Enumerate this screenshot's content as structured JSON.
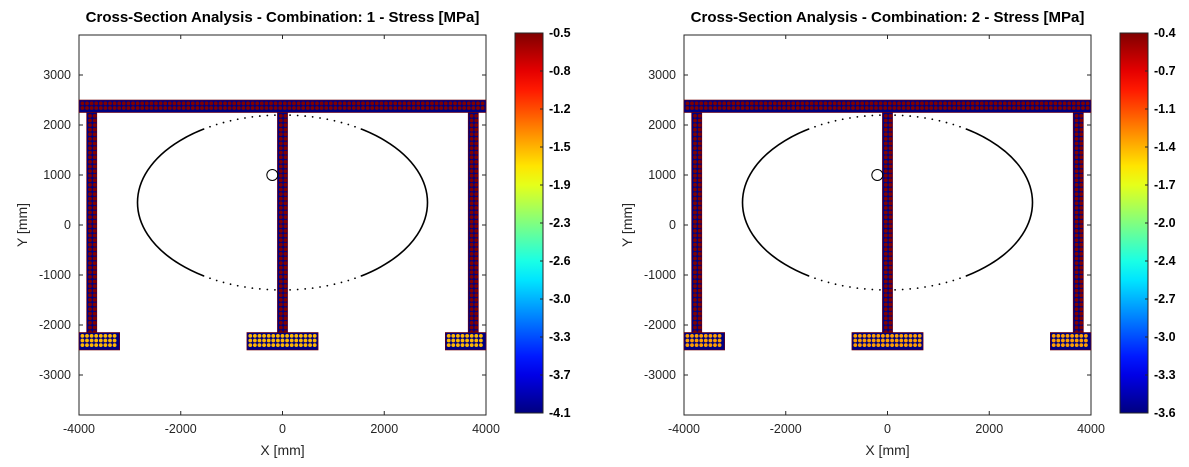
{
  "chart_data": [
    {
      "type": "scatter",
      "title": "Cross-Section Analysis - Combination: 1 - Stress [MPa]",
      "xlabel": "X [mm]",
      "ylabel": "Y [mm]",
      "xlim": [
        -4000,
        4000
      ],
      "ylim": [
        -3800,
        3800
      ],
      "xticks": [
        -4000,
        -2000,
        0,
        2000,
        4000
      ],
      "xtick_labels": [
        "-4000",
        "-2000",
        "0",
        "2000",
        "4000"
      ],
      "yticks": [
        3000,
        2000,
        1000,
        0,
        -1000,
        -2000,
        -3000
      ],
      "ytick_labels": [
        "3000",
        "2000",
        "1000",
        "0",
        "-1000",
        "-2000",
        "-3000"
      ],
      "grid": false,
      "colormap": "jet",
      "colorbar": {
        "range": [
          -4.1,
          -0.5
        ],
        "tick_labels": [
          "-0.5",
          "-0.8",
          "-1.2",
          "-1.5",
          "-1.9",
          "-2.3",
          "-2.6",
          "-3.0",
          "-3.3",
          "-3.7",
          "-4.1"
        ]
      },
      "section": {
        "top_flange": {
          "x": [
            -4000,
            4000
          ],
          "y": [
            2250,
            2500
          ]
        },
        "webs": [
          {
            "x": [
              -3850,
              -3650
            ],
            "y": [
              -2250,
              2250
            ]
          },
          {
            "x": [
              -100,
              100
            ],
            "y": [
              -2250,
              2250
            ]
          },
          {
            "x": [
              3650,
              3850
            ],
            "y": [
              -2250,
              2250
            ]
          }
        ],
        "bottom_flanges": [
          {
            "x": [
              -4000,
              -3200
            ],
            "y": [
              -2500,
              -2150
            ]
          },
          {
            "x": [
              -700,
              700
            ],
            "y": [
              -2500,
              -2150
            ]
          },
          {
            "x": [
              3200,
              4000
            ],
            "y": [
              -2500,
              -2150
            ]
          }
        ],
        "edge_stress": -0.5,
        "interior_stress": -4.1,
        "bottom_stress": -3.0
      },
      "ellipse": {
        "center": [
          0,
          450
        ],
        "radii": [
          2850,
          1750
        ]
      },
      "marker_circle": {
        "center": [
          -200,
          1000
        ]
      }
    },
    {
      "type": "scatter",
      "title": "Cross-Section Analysis - Combination: 2 - Stress [MPa]",
      "xlabel": "X [mm]",
      "ylabel": "Y [mm]",
      "xlim": [
        -4000,
        4000
      ],
      "ylim": [
        -3800,
        3800
      ],
      "xticks": [
        -4000,
        -2000,
        0,
        2000,
        4000
      ],
      "xtick_labels": [
        "-4000",
        "-2000",
        "0",
        "2000",
        "4000"
      ],
      "yticks": [
        3000,
        2000,
        1000,
        0,
        -1000,
        -2000,
        -3000
      ],
      "ytick_labels": [
        "3000",
        "2000",
        "1000",
        "0",
        "-1000",
        "-2000",
        "-3000"
      ],
      "grid": false,
      "colormap": "jet",
      "colorbar": {
        "range": [
          -3.6,
          -0.4
        ],
        "tick_labels": [
          "-0.4",
          "-0.7",
          "-1.1",
          "-1.4",
          "-1.7",
          "-2.0",
          "-2.4",
          "-2.7",
          "-3.0",
          "-3.3",
          "-3.6"
        ]
      },
      "section": {
        "top_flange": {
          "x": [
            -4000,
            4000
          ],
          "y": [
            2250,
            2500
          ]
        },
        "webs": [
          {
            "x": [
              -3850,
              -3650
            ],
            "y": [
              -2250,
              2250
            ]
          },
          {
            "x": [
              -100,
              100
            ],
            "y": [
              -2250,
              2250
            ]
          },
          {
            "x": [
              3650,
              3850
            ],
            "y": [
              -2250,
              2250
            ]
          }
        ],
        "bottom_flanges": [
          {
            "x": [
              -4000,
              -3200
            ],
            "y": [
              -2500,
              -2150
            ]
          },
          {
            "x": [
              -700,
              700
            ],
            "y": [
              -2500,
              -2150
            ]
          },
          {
            "x": [
              3200,
              4000
            ],
            "y": [
              -2500,
              -2150
            ]
          }
        ],
        "edge_stress": -0.4,
        "interior_stress": -3.6,
        "bottom_stress": -2.7
      },
      "ellipse": {
        "center": [
          0,
          450
        ],
        "radii": [
          2850,
          1750
        ]
      },
      "marker_circle": {
        "center": [
          -200,
          1000
        ]
      }
    }
  ]
}
